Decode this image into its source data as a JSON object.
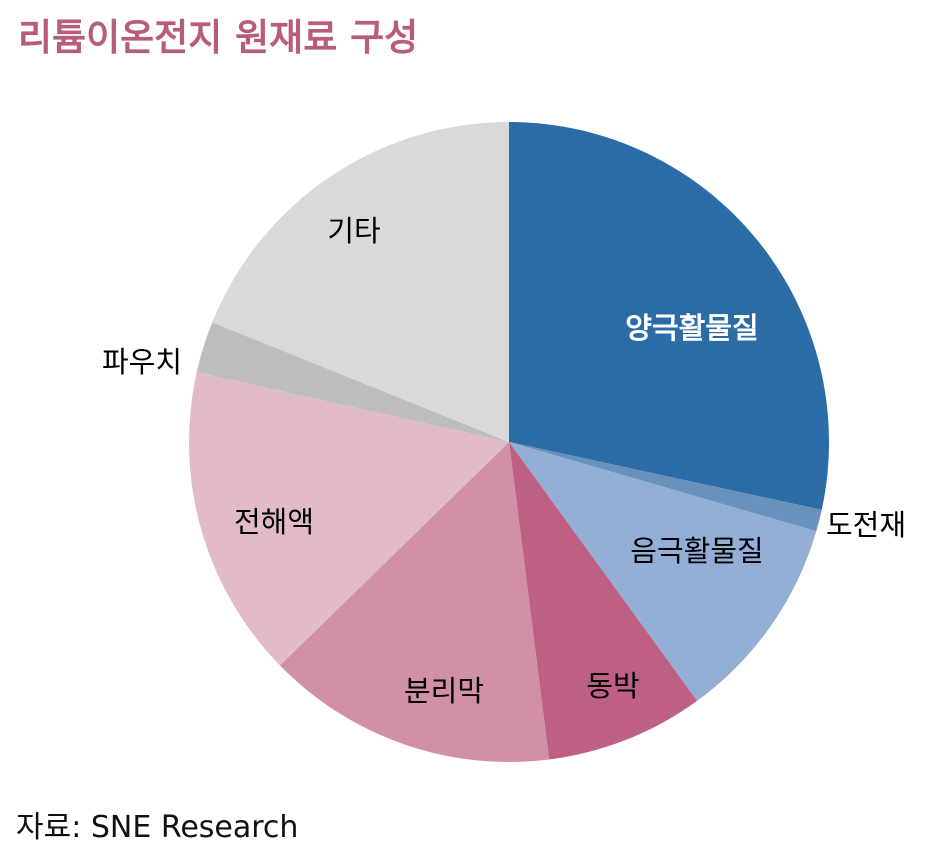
{
  "title": "리튬이온전지 원재료 구성",
  "source": "자료: SNE Research",
  "colors": {
    "title": "#b85c7e"
  },
  "chart_data": {
    "type": "pie",
    "title": "리튬이온전지 원재료 구성",
    "start_angle_deg": 0,
    "direction": "clockwise",
    "slices": [
      {
        "label": "양극활물질",
        "value": 28.4,
        "color": "#2b6ca6",
        "text_color": "#ffffff"
      },
      {
        "label": "도전재",
        "value": 1.1,
        "color": "#6892bb",
        "text_color": "#000000"
      },
      {
        "label": "음극활물질",
        "value": 10.5,
        "color": "#93afd6",
        "text_color": "#000000"
      },
      {
        "label": "동박",
        "value": 8.0,
        "color": "#bd6083",
        "text_color": "#000000"
      },
      {
        "label": "분리막",
        "value": 14.7,
        "color": "#d290a6",
        "text_color": "#000000"
      },
      {
        "label": "전해액",
        "value": 15.8,
        "color": "#e2bbc9",
        "text_color": "#000000"
      },
      {
        "label": "파우치",
        "value": 2.6,
        "color": "#bdbdbd",
        "text_color": "#000000"
      },
      {
        "label": "기타",
        "value": 18.9,
        "color": "#d9d9d9",
        "text_color": "#000000"
      }
    ]
  }
}
